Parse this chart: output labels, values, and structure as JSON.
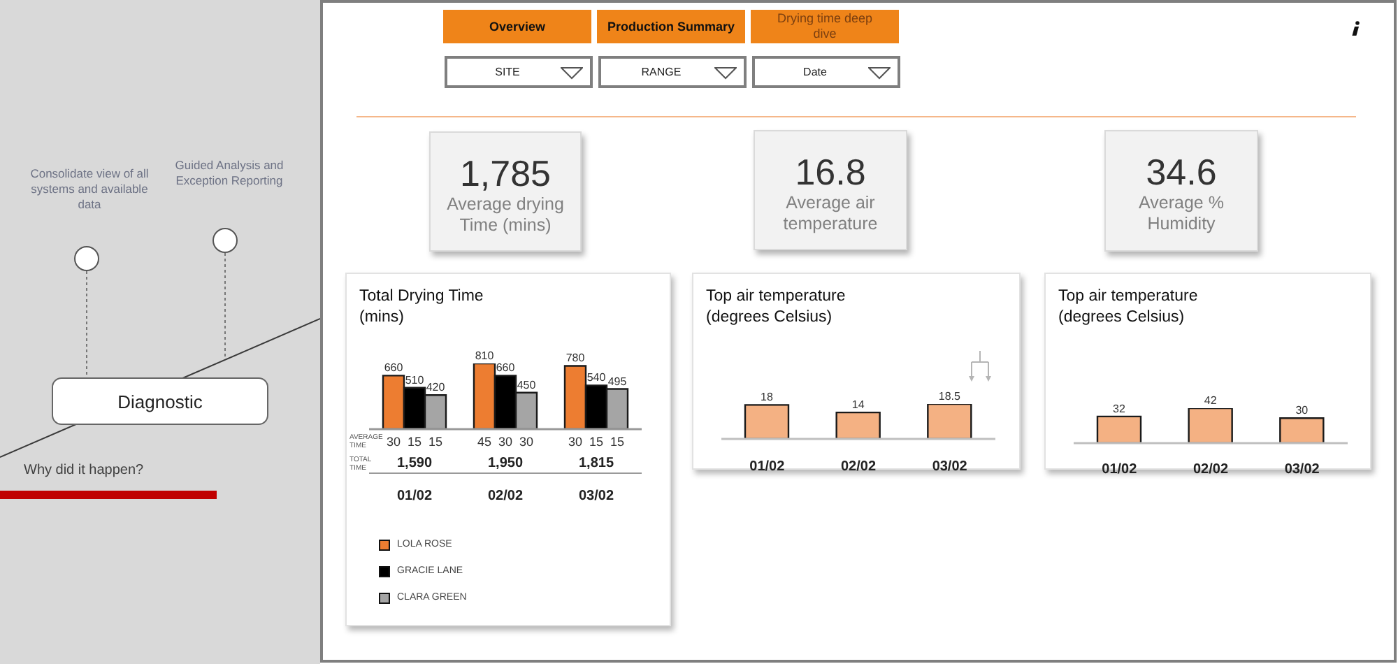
{
  "chart_data": [
    {
      "type": "other",
      "annotations": [
        "Consolidate view of all systems and available data",
        "Guided Analysis and Exception Reporting",
        "Diagnostic",
        "Why did it happen?"
      ]
    },
    {
      "type": "other",
      "annotations": [
        "Overview",
        "Production Summary",
        "Drying time deep dive",
        "SITE",
        "RANGE",
        "Date"
      ]
    },
    {
      "type": "other",
      "annotations": [
        "1,785",
        "Average drying Time (mins)"
      ]
    },
    {
      "type": "other",
      "annotations": [
        "16.8",
        "Average air temperature"
      ]
    },
    {
      "type": "other",
      "annotations": [
        "34.6",
        "Average % Humidity"
      ]
    },
    {
      "type": "bar",
      "title": "Total Drying Time (mins)",
      "categories": [
        "01/02",
        "02/02",
        "03/02"
      ],
      "series": [
        {
          "name": "LOLA ROSE",
          "color": "#ed7d31",
          "values": [
            660,
            810,
            780
          ]
        },
        {
          "name": "GRACIE LANE",
          "color": "#000000",
          "values": [
            510,
            660,
            540
          ]
        },
        {
          "name": "CLARA GREEN",
          "color": "#a5a5a5",
          "values": [
            420,
            450,
            495
          ]
        }
      ],
      "data_labels": true,
      "annotations": [
        "AVERAGE TIME",
        "TOTAL TIME",
        "30",
        "15",
        "15",
        "45",
        "30",
        "30",
        "30",
        "15",
        "15",
        "1,590",
        "1,950",
        "1,815"
      ],
      "legend": "bottom left",
      "tick_labels": "x"
    },
    {
      "type": "bar",
      "title": "Top air temperature (degrees Celsius)",
      "categories": [
        "01/02",
        "02/02",
        "03/02"
      ],
      "values": [
        18,
        14,
        18.5
      ],
      "color": "#f4b183",
      "data_labels": true,
      "tick_labels": "x"
    },
    {
      "type": "bar",
      "title": "Top air temperature (degrees Celsius)",
      "categories": [
        "01/02",
        "02/02",
        "03/02"
      ],
      "values": [
        32,
        42,
        30
      ],
      "color": "#f4b183",
      "data_labels": true,
      "tick_labels": "x"
    }
  ]
}
